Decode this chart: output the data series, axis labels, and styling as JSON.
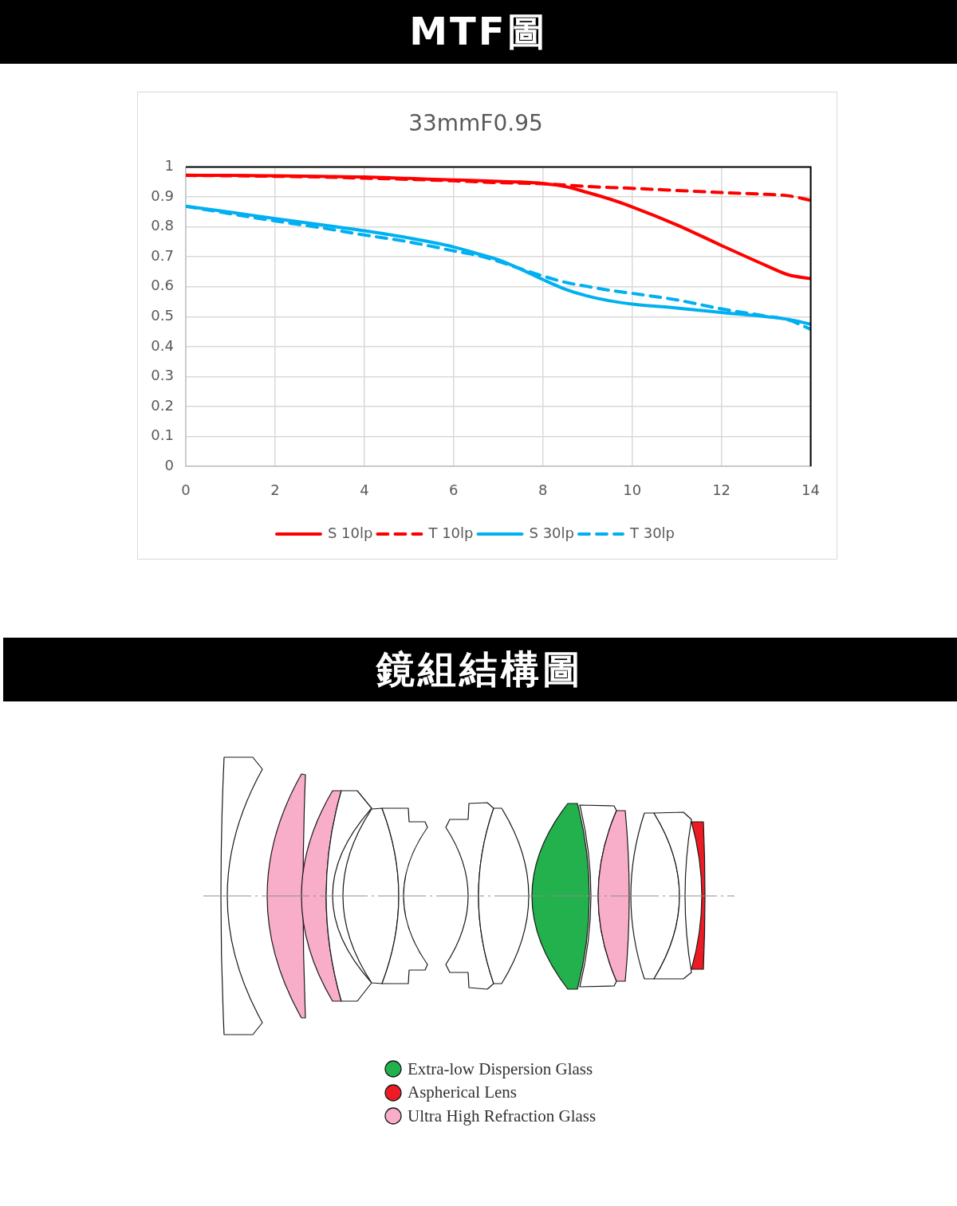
{
  "chart_data": {
    "type": "line",
    "title": "MTF圖",
    "subtitle": "33mmF0.95",
    "x": [
      0,
      1,
      2,
      3,
      4,
      5,
      6,
      6.5,
      7,
      7.5,
      8,
      8.5,
      9,
      9.5,
      10,
      11,
      12,
      13,
      13.5,
      14
    ],
    "series": [
      {
        "name": "S 10lp",
        "color": "#ff0000",
        "line_style": "solid",
        "values": [
          0.973,
          0.972,
          0.971,
          0.969,
          0.967,
          0.962,
          0.957,
          0.955,
          0.952,
          0.95,
          0.945,
          0.935,
          0.915,
          0.893,
          0.867,
          0.807,
          0.738,
          0.671,
          0.64,
          0.627
        ]
      },
      {
        "name": "T 10lp",
        "color": "#ff0000",
        "line_style": "dashed",
        "values": [
          0.972,
          0.971,
          0.969,
          0.967,
          0.963,
          0.959,
          0.954,
          0.951,
          0.948,
          0.946,
          0.944,
          0.94,
          0.935,
          0.932,
          0.929,
          0.922,
          0.915,
          0.909,
          0.904,
          0.889
        ]
      },
      {
        "name": "S 30lp",
        "color": "#00b0f0",
        "line_style": "solid",
        "values": [
          0.869,
          0.849,
          0.828,
          0.808,
          0.787,
          0.763,
          0.733,
          0.712,
          0.69,
          0.659,
          0.624,
          0.592,
          0.569,
          0.553,
          0.542,
          0.529,
          0.514,
          0.5,
          0.491,
          0.475
        ]
      },
      {
        "name": "T 30lp",
        "color": "#00b0f0",
        "line_style": "dashed",
        "values": [
          0.869,
          0.844,
          0.82,
          0.798,
          0.773,
          0.75,
          0.72,
          0.706,
          0.685,
          0.66,
          0.636,
          0.615,
          0.601,
          0.588,
          0.578,
          0.556,
          0.526,
          0.502,
          0.489,
          0.458
        ]
      }
    ],
    "xlim": [
      0,
      14
    ],
    "ylim": [
      0,
      1
    ],
    "xticks": [
      0,
      2,
      4,
      6,
      8,
      10,
      12,
      14
    ],
    "yticks": [
      0,
      0.1,
      0.2,
      0.3,
      0.4,
      0.5,
      0.6,
      0.7,
      0.8,
      0.9,
      1
    ],
    "grid": true,
    "legend": "bottom",
    "annotations": [
      "鏡組結構圖",
      "Extra-low Dispersion Glass",
      "Aspherical Lens",
      "Ultra High Refraction Glass"
    ]
  }
}
